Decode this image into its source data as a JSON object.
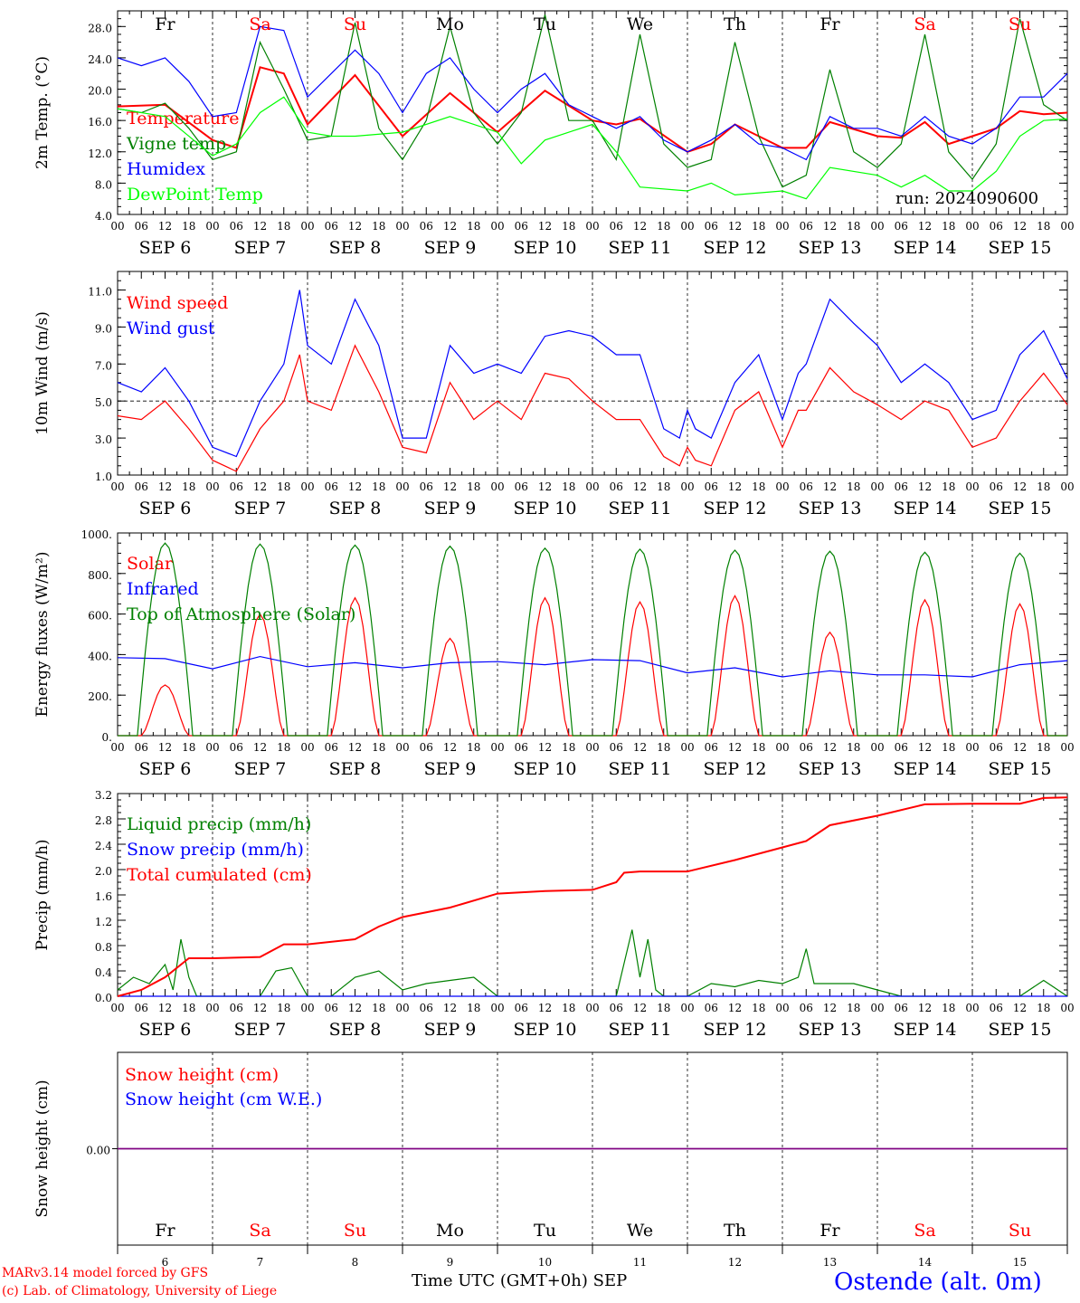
{
  "run_label": "run: 2024090600",
  "station_label": "Ostende (alt. 0m)",
  "footer_line1": "MARv3.14 model forced by GFS",
  "footer_line2": "(c) Lab. of Climatology, University of Liege",
  "time_axis_label": "Time UTC (GMT+0h)",
  "month_label": "SEP",
  "hour_ticks": [
    "00",
    "06",
    "12",
    "18"
  ],
  "end_hour": "00",
  "days": [
    {
      "abbr": "Fr",
      "date": "SEP  6",
      "num": "6",
      "weekend": false
    },
    {
      "abbr": "Sa",
      "date": "SEP  7",
      "num": "7",
      "weekend": true
    },
    {
      "abbr": "Su",
      "date": "SEP  8",
      "num": "8",
      "weekend": true
    },
    {
      "abbr": "Mo",
      "date": "SEP  9",
      "num": "9",
      "weekend": false
    },
    {
      "abbr": "Tu",
      "date": "SEP 10",
      "num": "10",
      "weekend": false
    },
    {
      "abbr": "We",
      "date": "SEP 11",
      "num": "11",
      "weekend": false
    },
    {
      "abbr": "Th",
      "date": "SEP 12",
      "num": "12",
      "weekend": false
    },
    {
      "abbr": "Fr",
      "date": "SEP 13",
      "num": "13",
      "weekend": false
    },
    {
      "abbr": "Sa",
      "date": "SEP 14",
      "num": "14",
      "weekend": true
    },
    {
      "abbr": "Su",
      "date": "SEP 15",
      "num": "15",
      "weekend": true
    }
  ],
  "colors": {
    "red": "#ff0000",
    "green": "#008000",
    "blue": "#0000ff",
    "lime": "#00ff00",
    "purple": "#800080"
  },
  "chart_data": [
    {
      "type": "line",
      "ylabel": "2m Temp. (°C)",
      "ylim": [
        4.0,
        30.0
      ],
      "yticks": [
        "4.0",
        "8.0",
        "12.0",
        "16.0",
        "20.0",
        "24.0",
        "28.0"
      ],
      "x_unit": "hours since Sep 6 00 UTC",
      "series": [
        {
          "name": "Temperature",
          "color": "#ff0000",
          "x": [
            0,
            12,
            24,
            30,
            36,
            42,
            48,
            60,
            72,
            84,
            96,
            108,
            120,
            126,
            132,
            144,
            150,
            156,
            168,
            174,
            180,
            192,
            198,
            204,
            210,
            216,
            222,
            228,
            234,
            240
          ],
          "y": [
            17.8,
            18.0,
            13.5,
            12.5,
            22.8,
            22.0,
            15.5,
            21.8,
            14.0,
            19.5,
            14.5,
            19.8,
            16.0,
            15.5,
            16.2,
            12.0,
            13.0,
            15.5,
            12.5,
            12.5,
            15.8,
            14.0,
            13.8,
            15.8,
            13.0,
            14.0,
            15.0,
            17.2,
            16.8,
            17.0
          ]
        },
        {
          "name": "Vigne temp",
          "color": "#008000",
          "x": [
            0,
            6,
            12,
            18,
            24,
            30,
            36,
            42,
            48,
            54,
            60,
            66,
            72,
            78,
            84,
            90,
            96,
            102,
            108,
            114,
            120,
            126,
            132,
            138,
            144,
            150,
            156,
            162,
            168,
            174,
            180,
            186,
            192,
            198,
            204,
            210,
            216,
            222,
            228,
            234,
            240
          ],
          "y": [
            17.5,
            17.0,
            18.2,
            15.0,
            11.0,
            12.0,
            26.0,
            20.0,
            13.5,
            14.0,
            28.5,
            15.0,
            11.0,
            16.0,
            28.0,
            17.0,
            13.0,
            17.0,
            29.5,
            16.0,
            16.0,
            11.0,
            27.0,
            13.0,
            10.0,
            11.0,
            26.0,
            14.0,
            7.5,
            9.0,
            22.5,
            12.0,
            10.0,
            13.0,
            27.0,
            12.0,
            8.5,
            13.0,
            29.0,
            18.0,
            16.0
          ]
        },
        {
          "name": "Humidex",
          "color": "#0000ff",
          "x": [
            0,
            6,
            12,
            18,
            24,
            30,
            36,
            42,
            48,
            54,
            60,
            66,
            72,
            78,
            84,
            90,
            96,
            102,
            108,
            114,
            120,
            126,
            132,
            138,
            144,
            150,
            156,
            162,
            168,
            174,
            180,
            186,
            192,
            198,
            204,
            210,
            216,
            222,
            228,
            234,
            240
          ],
          "y": [
            24.0,
            23.0,
            24.0,
            21.0,
            16.5,
            17.0,
            28.0,
            27.5,
            19.0,
            22.0,
            25.0,
            22.0,
            17.0,
            22.0,
            24.0,
            20.0,
            17.0,
            20.0,
            22.0,
            18.0,
            16.5,
            15.0,
            16.5,
            13.5,
            12.0,
            13.5,
            15.5,
            13.0,
            12.5,
            11.0,
            16.5,
            15.0,
            15.0,
            14.0,
            16.5,
            14.0,
            13.0,
            15.0,
            19.0,
            19.0,
            22.0
          ]
        },
        {
          "name": "DewPoint Temp",
          "color": "#00ff00",
          "x": [
            0,
            12,
            24,
            30,
            36,
            42,
            48,
            54,
            60,
            72,
            84,
            96,
            102,
            108,
            120,
            126,
            132,
            144,
            150,
            156,
            168,
            174,
            180,
            192,
            198,
            204,
            210,
            216,
            222,
            228,
            234,
            240
          ],
          "y": [
            17.5,
            16.5,
            11.5,
            13.0,
            17.0,
            19.0,
            14.5,
            14.0,
            14.0,
            14.5,
            16.5,
            14.5,
            10.5,
            13.5,
            15.5,
            12.0,
            7.5,
            7.0,
            8.0,
            6.5,
            7.0,
            6.0,
            10.0,
            9.0,
            7.5,
            9.0,
            7.0,
            7.0,
            9.5,
            14.0,
            16.0,
            16.2
          ]
        }
      ]
    },
    {
      "type": "line",
      "ylabel": "10m Wind (m/s)",
      "ylim": [
        1.0,
        12.0
      ],
      "yticks": [
        "1.0",
        "3.0",
        "5.0",
        "7.0",
        "9.0",
        "11.0"
      ],
      "reference_line": 5.0,
      "series": [
        {
          "name": "Wind speed",
          "color": "#ff0000",
          "x": [
            0,
            6,
            12,
            18,
            24,
            30,
            36,
            42,
            46,
            48,
            54,
            60,
            66,
            72,
            78,
            84,
            90,
            96,
            102,
            108,
            114,
            120,
            126,
            132,
            138,
            142,
            144,
            146,
            150,
            156,
            162,
            168,
            172,
            174,
            180,
            186,
            192,
            198,
            204,
            210,
            216,
            222,
            228,
            234,
            240
          ],
          "y": [
            4.2,
            4.0,
            5.0,
            3.5,
            1.8,
            1.2,
            3.5,
            5.0,
            7.5,
            5.0,
            4.5,
            8.0,
            5.5,
            2.5,
            2.2,
            6.0,
            4.0,
            5.0,
            4.0,
            6.5,
            6.2,
            5.0,
            4.0,
            4.0,
            2.0,
            1.5,
            2.5,
            1.8,
            1.5,
            4.5,
            5.5,
            2.5,
            4.5,
            4.5,
            6.8,
            5.5,
            4.8,
            4.0,
            5.0,
            4.5,
            2.5,
            3.0,
            5.0,
            6.5,
            4.8
          ]
        },
        {
          "name": "Wind gust",
          "color": "#0000ff",
          "x": [
            0,
            6,
            12,
            18,
            24,
            30,
            36,
            42,
            46,
            48,
            54,
            60,
            66,
            72,
            78,
            84,
            90,
            96,
            102,
            108,
            114,
            120,
            126,
            132,
            138,
            142,
            144,
            146,
            150,
            156,
            162,
            168,
            172,
            174,
            180,
            186,
            192,
            198,
            204,
            210,
            216,
            222,
            228,
            234,
            240
          ],
          "y": [
            6.0,
            5.5,
            6.8,
            5.0,
            2.5,
            2.0,
            5.0,
            7.0,
            11.0,
            8.0,
            7.0,
            10.5,
            8.0,
            3.0,
            3.0,
            8.0,
            6.5,
            7.0,
            6.5,
            8.5,
            8.8,
            8.5,
            7.5,
            7.5,
            3.5,
            3.0,
            4.5,
            3.5,
            3.0,
            6.0,
            7.5,
            4.0,
            6.5,
            7.0,
            10.5,
            9.2,
            8.0,
            6.0,
            7.0,
            6.0,
            4.0,
            4.5,
            7.5,
            8.8,
            6.2
          ]
        }
      ]
    },
    {
      "type": "line",
      "ylabel": "Energy fluxes (W/m²)",
      "ylim": [
        0,
        1000
      ],
      "yticks": [
        "0.",
        "200.",
        "400.",
        "600.",
        "800.",
        "1000."
      ],
      "series": [
        {
          "name": "Solar",
          "color": "#ff0000",
          "daily_peak": [
            250,
            600,
            680,
            480,
            680,
            660,
            690,
            510,
            670,
            650
          ],
          "peak_hour": 12
        },
        {
          "name": "Infrared",
          "color": "#0000ff",
          "x": [
            0,
            12,
            24,
            36,
            48,
            60,
            72,
            84,
            96,
            108,
            120,
            132,
            144,
            156,
            168,
            180,
            192,
            204,
            216,
            228,
            240
          ],
          "y": [
            385,
            380,
            330,
            390,
            340,
            360,
            335,
            360,
            365,
            350,
            375,
            370,
            310,
            335,
            290,
            320,
            300,
            300,
            290,
            350,
            370
          ]
        },
        {
          "name": "Top of Atmosphere (Solar)",
          "color": "#008000",
          "daily_peak": [
            950,
            945,
            940,
            935,
            925,
            920,
            915,
            910,
            905,
            900
          ],
          "sunrise_hour": 5,
          "sunset_hour": 19
        }
      ]
    },
    {
      "type": "line",
      "ylabel": "Precip (mm/h)",
      "ylim": [
        0.0,
        3.2
      ],
      "yticks": [
        "0.0",
        "0.4",
        "0.8",
        "1.2",
        "1.6",
        "2.0",
        "2.4",
        "2.8",
        "3.2"
      ],
      "series": [
        {
          "name": "Liquid precip (mm/h)",
          "color": "#008000",
          "x": [
            0,
            4,
            8,
            12,
            14,
            16,
            18,
            20,
            22,
            24,
            36,
            40,
            44,
            48,
            54,
            60,
            66,
            72,
            78,
            84,
            90,
            96,
            102,
            108,
            114,
            120,
            126,
            130,
            132,
            134,
            136,
            138,
            144,
            150,
            156,
            162,
            168,
            172,
            174,
            176,
            180,
            186,
            192,
            198,
            204,
            210,
            216,
            222,
            228,
            234,
            240
          ],
          "y": [
            0.1,
            0.3,
            0.2,
            0.5,
            0.1,
            0.9,
            0.3,
            0.0,
            0.0,
            0.0,
            0.0,
            0.4,
            0.45,
            0.0,
            0.0,
            0.3,
            0.4,
            0.1,
            0.2,
            0.25,
            0.3,
            0.0,
            0.0,
            0.0,
            0.0,
            0.0,
            0.0,
            1.05,
            0.3,
            0.9,
            0.1,
            0.0,
            0.0,
            0.2,
            0.15,
            0.25,
            0.2,
            0.3,
            0.75,
            0.2,
            0.2,
            0.2,
            0.1,
            0.0,
            0.0,
            0.0,
            0.0,
            0.0,
            0.0,
            0.25,
            0.0
          ]
        },
        {
          "name": "Snow precip (mm/h)",
          "color": "#0000ff",
          "x": [
            0,
            240
          ],
          "y": [
            0,
            0
          ]
        },
        {
          "name": "Total cumulated (cm)",
          "color": "#ff0000",
          "x": [
            0,
            6,
            12,
            18,
            24,
            36,
            42,
            48,
            60,
            66,
            72,
            84,
            96,
            108,
            120,
            126,
            128,
            132,
            144,
            156,
            168,
            174,
            180,
            192,
            204,
            216,
            228,
            234,
            240
          ],
          "y": [
            0.0,
            0.1,
            0.3,
            0.6,
            0.6,
            0.62,
            0.82,
            0.82,
            0.9,
            1.1,
            1.25,
            1.4,
            1.62,
            1.66,
            1.68,
            1.8,
            1.95,
            1.97,
            1.97,
            2.15,
            2.35,
            2.45,
            2.7,
            2.85,
            3.03,
            3.04,
            3.04,
            3.13,
            3.14
          ]
        }
      ]
    },
    {
      "type": "line",
      "ylabel": "Snow height (cm)",
      "ylim": [
        -1,
        1
      ],
      "yticks": [
        "0.00"
      ],
      "series": [
        {
          "name": "Snow height (cm)",
          "color": "#ff0000",
          "x": [
            0,
            240
          ],
          "y": [
            0,
            0
          ]
        },
        {
          "name": "Snow height (cm W.E.)",
          "color": "#0000ff",
          "x": [
            0,
            240
          ],
          "y": [
            0,
            0
          ]
        }
      ]
    }
  ]
}
